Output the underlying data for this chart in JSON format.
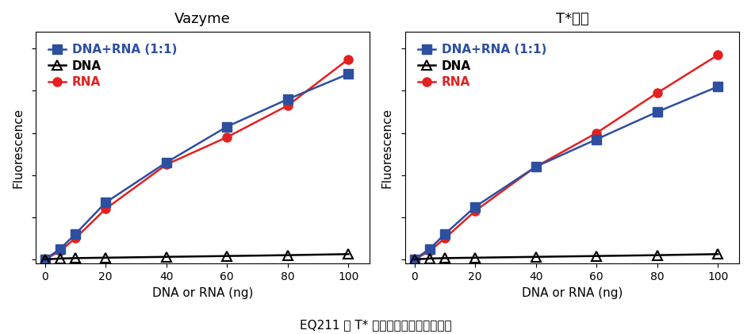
{
  "title_left": "Vazyme",
  "title_right": "T*品牌",
  "xlabel": "DNA or RNA (ng)",
  "ylabel": "Fluorescence",
  "caption": "EQ211 与 T* 品牌同质产品特异性比较",
  "x": [
    0,
    5,
    10,
    20,
    40,
    60,
    80,
    100
  ],
  "vazyme_dna_rna": [
    0,
    0.05,
    0.12,
    0.27,
    0.46,
    0.63,
    0.76,
    0.88
  ],
  "vazyme_dna": [
    0,
    0.004,
    0.006,
    0.008,
    0.012,
    0.016,
    0.02,
    0.025
  ],
  "vazyme_rna": [
    0,
    0.04,
    0.1,
    0.24,
    0.45,
    0.58,
    0.73,
    0.95
  ],
  "tbrand_dna_rna": [
    0,
    0.05,
    0.12,
    0.25,
    0.44,
    0.57,
    0.7,
    0.82
  ],
  "tbrand_dna": [
    0,
    0.004,
    0.006,
    0.008,
    0.012,
    0.016,
    0.02,
    0.025
  ],
  "tbrand_rna": [
    0,
    0.04,
    0.1,
    0.23,
    0.44,
    0.6,
    0.79,
    0.97
  ],
  "color_dna_rna": "#2d4fa0",
  "color_dna": "#000000",
  "color_rna": "#e42020",
  "bg_color": "#ffffff",
  "legend_label_dna_rna": "DNA+RNA (1:1)",
  "legend_label_dna": "DNA",
  "legend_label_rna": "RNA",
  "xticks": [
    0,
    20,
    40,
    60,
    80,
    100
  ],
  "linewidth": 1.8,
  "markersize": 8
}
